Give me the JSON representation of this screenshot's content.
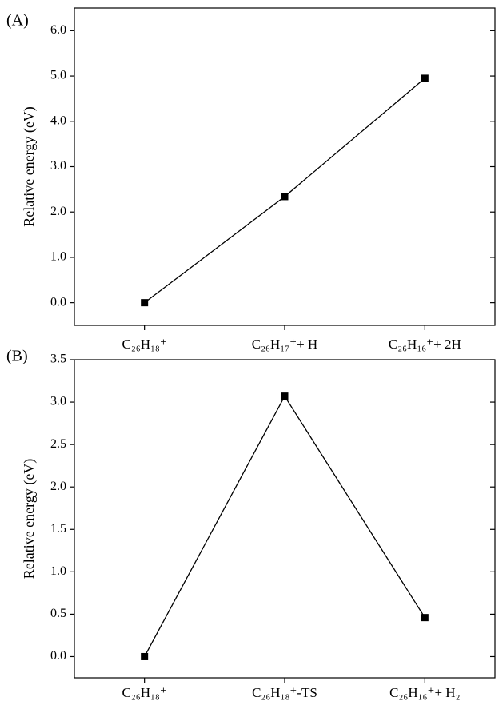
{
  "chart_data": [
    {
      "type": "line",
      "panel_label": "(A)",
      "y_label": "Relative energy (eV)",
      "categories": [
        "C₂₆H₁₈⁺",
        "C₂₆H₁₇⁺+ H",
        "C₂₆H₁₆⁺+ 2H"
      ],
      "values": [
        0,
        2.34,
        4.95
      ],
      "color": "#000000",
      "ylim": [
        -0.5,
        6.5
      ],
      "yticks": [
        {
          "value": 0,
          "label": "0.0"
        },
        {
          "value": 1,
          "label": "1.0"
        },
        {
          "value": 2,
          "label": "2.0"
        },
        {
          "value": 3,
          "label": "3.0"
        },
        {
          "value": 4,
          "label": "4.0"
        },
        {
          "value": 5,
          "label": "5.0"
        },
        {
          "value": 6,
          "label": "6.0"
        }
      ]
    },
    {
      "type": "line",
      "panel_label": "(B)",
      "y_label": "Relative energy (eV)",
      "categories": [
        "C₂₆H₁₈⁺",
        "C₂₆H₁₈⁺-TS",
        "C₂₆H₁₆⁺+ H₂"
      ],
      "values": [
        0,
        3.07,
        0.46
      ],
      "color": "#000000",
      "ylim": [
        -0.25,
        3.5
      ],
      "yticks": [
        {
          "value": 0,
          "label": "0.0"
        },
        {
          "value": 0.5,
          "label": "0.5"
        },
        {
          "value": 1,
          "label": "1.0"
        },
        {
          "value": 1.5,
          "label": "1.5"
        },
        {
          "value": 2,
          "label": "2.0"
        },
        {
          "value": 2.5,
          "label": "2.5"
        },
        {
          "value": 3,
          "label": "3.0"
        },
        {
          "value": 3.5,
          "label": "3.5"
        }
      ]
    }
  ]
}
